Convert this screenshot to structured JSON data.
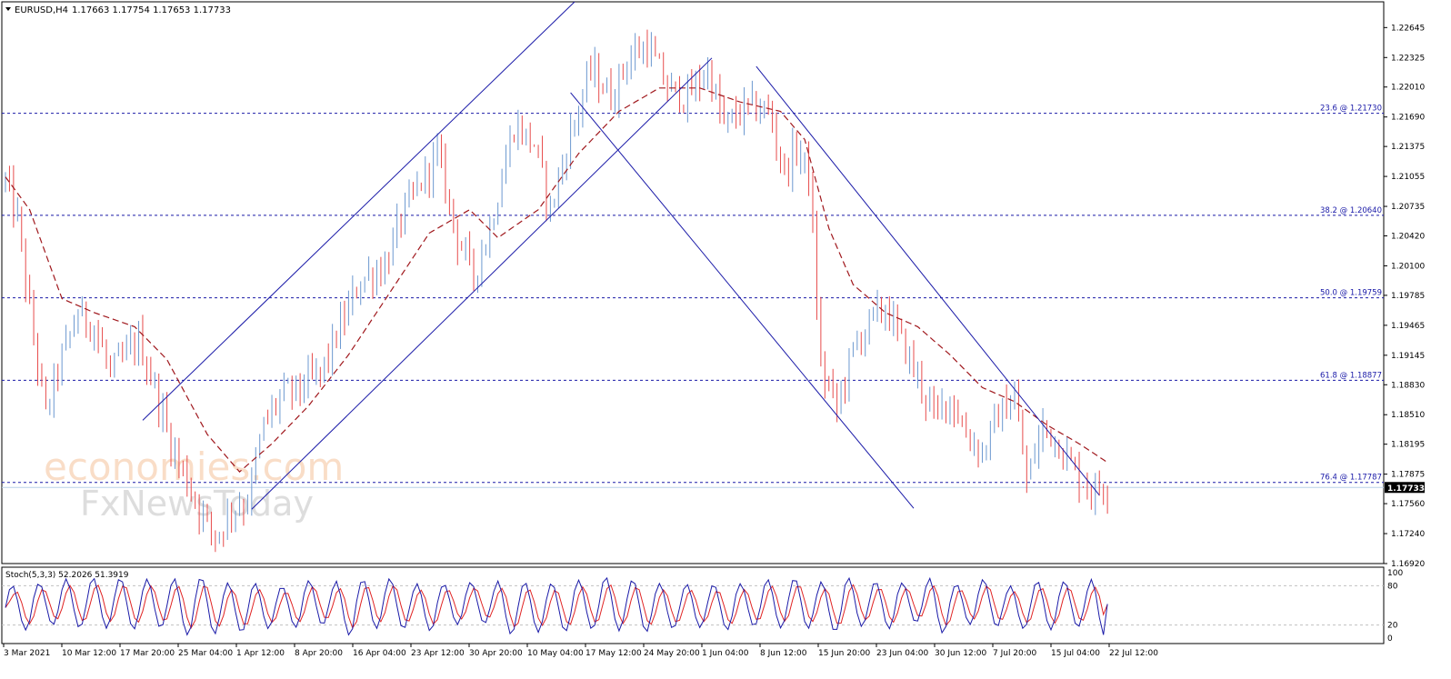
{
  "header": {
    "symbol": "EURUSD,H4",
    "ohlc": "1.17663 1.17754 1.17653 1.17733"
  },
  "indicator": {
    "label": "Stoch(5,3,3) 52.2026 51.3919",
    "levels": [
      "100",
      "80",
      "20",
      "0"
    ]
  },
  "watermark": {
    "line1": "economies.com",
    "line2": "FxNewsToday"
  },
  "colors": {
    "background": "#ffffff",
    "bull_candle": "#6c98d0",
    "bear_candle": "#e74c4c",
    "moving_average": "#a0181d",
    "trendline": "#1a1aa8",
    "fib_line": "#1a1aa8",
    "stoch_main": "#1a1aa8",
    "stoch_signal": "#e02424",
    "current_price_bg": "#000000"
  },
  "chart_data": [
    {
      "type": "candlestick",
      "title": "EURUSD,H4",
      "ylim": [
        1.1692,
        1.2292
      ],
      "y_ticks": [
        "1.22645",
        "1.22325",
        "1.22010",
        "1.21690",
        "1.21375",
        "1.21055",
        "1.20735",
        "1.20420",
        "1.20100",
        "1.19785",
        "1.19465",
        "1.19145",
        "1.18830",
        "1.18510",
        "1.18195",
        "1.17875",
        "1.17560",
        "1.17240",
        "1.16920"
      ],
      "x_ticks": [
        "3 Mar 2021",
        "10 Mar 12:00",
        "17 Mar 20:00",
        "25 Mar 04:00",
        "1 Apr 12:00",
        "8 Apr 20:00",
        "16 Apr 04:00",
        "23 Apr 12:00",
        "30 Apr 20:00",
        "10 May 04:00",
        "17 May 12:00",
        "24 May 20:00",
        "1 Jun 04:00",
        "8 Jun 12:00",
        "15 Jun 20:00",
        "23 Jun 04:00",
        "30 Jun 12:00",
        "7 Jul 20:00",
        "15 Jul 04:00",
        "22 Jul 12:00"
      ],
      "current_price": "1.17733",
      "close_path": [
        {
          "t": 0,
          "p": 1.21
        },
        {
          "t": 3,
          "p": 1.206
        },
        {
          "t": 6,
          "p": 1.196
        },
        {
          "t": 10,
          "p": 1.185
        },
        {
          "t": 13,
          "p": 1.19
        },
        {
          "t": 18,
          "p": 1.196
        },
        {
          "t": 22,
          "p": 1.1945
        },
        {
          "t": 26,
          "p": 1.1895
        },
        {
          "t": 33,
          "p": 1.193
        },
        {
          "t": 37,
          "p": 1.188
        },
        {
          "t": 41,
          "p": 1.182
        },
        {
          "t": 47,
          "p": 1.176
        },
        {
          "t": 52,
          "p": 1.172
        },
        {
          "t": 56,
          "p": 1.175
        },
        {
          "t": 60,
          "p": 1.176
        },
        {
          "t": 64,
          "p": 1.184
        },
        {
          "t": 68,
          "p": 1.187
        },
        {
          "t": 73,
          "p": 1.188
        },
        {
          "t": 78,
          "p": 1.1895
        },
        {
          "t": 83,
          "p": 1.1945
        },
        {
          "t": 88,
          "p": 1.1995
        },
        {
          "t": 94,
          "p": 1.201
        },
        {
          "t": 98,
          "p": 1.206
        },
        {
          "t": 103,
          "p": 1.21
        },
        {
          "t": 107,
          "p": 1.213
        },
        {
          "t": 112,
          "p": 1.204
        },
        {
          "t": 116,
          "p": 1.2
        },
        {
          "t": 120,
          "p": 1.205
        },
        {
          "t": 126,
          "p": 1.216
        },
        {
          "t": 131,
          "p": 1.214
        },
        {
          "t": 135,
          "p": 1.207
        },
        {
          "t": 140,
          "p": 1.215
        },
        {
          "t": 145,
          "p": 1.222
        },
        {
          "t": 150,
          "p": 1.219
        },
        {
          "t": 154,
          "p": 1.223
        },
        {
          "t": 159,
          "p": 1.2245
        },
        {
          "t": 164,
          "p": 1.22
        },
        {
          "t": 169,
          "p": 1.219
        },
        {
          "t": 174,
          "p": 1.222
        },
        {
          "t": 178,
          "p": 1.216
        },
        {
          "t": 184,
          "p": 1.218
        },
        {
          "t": 189,
          "p": 1.2175
        },
        {
          "t": 193,
          "p": 1.211
        },
        {
          "t": 196,
          "p": 1.2135
        },
        {
          "t": 199,
          "p": 1.211
        },
        {
          "t": 202,
          "p": 1.19
        },
        {
          "t": 206,
          "p": 1.186
        },
        {
          "t": 210,
          "p": 1.192
        },
        {
          "t": 214,
          "p": 1.195
        },
        {
          "t": 218,
          "p": 1.1965
        },
        {
          "t": 222,
          "p": 1.193
        },
        {
          "t": 226,
          "p": 1.189
        },
        {
          "t": 230,
          "p": 1.185
        },
        {
          "t": 234,
          "p": 1.187
        },
        {
          "t": 238,
          "p": 1.183
        },
        {
          "t": 242,
          "p": 1.181
        },
        {
          "t": 246,
          "p": 1.185
        },
        {
          "t": 250,
          "p": 1.187
        },
        {
          "t": 253,
          "p": 1.178
        },
        {
          "t": 257,
          "p": 1.184
        },
        {
          "t": 261,
          "p": 1.182
        },
        {
          "t": 265,
          "p": 1.179
        },
        {
          "t": 269,
          "p": 1.177
        },
        {
          "t": 273,
          "p": 1.1775
        }
      ],
      "moving_average": [
        {
          "t": 0,
          "p": 1.2105
        },
        {
          "t": 6,
          "p": 1.207
        },
        {
          "t": 14,
          "p": 1.1975
        },
        {
          "t": 22,
          "p": 1.196
        },
        {
          "t": 32,
          "p": 1.1945
        },
        {
          "t": 40,
          "p": 1.191
        },
        {
          "t": 50,
          "p": 1.183
        },
        {
          "t": 58,
          "p": 1.179
        },
        {
          "t": 66,
          "p": 1.182
        },
        {
          "t": 75,
          "p": 1.186
        },
        {
          "t": 85,
          "p": 1.1915
        },
        {
          "t": 95,
          "p": 1.198
        },
        {
          "t": 105,
          "p": 1.2045
        },
        {
          "t": 115,
          "p": 1.207
        },
        {
          "t": 122,
          "p": 1.204
        },
        {
          "t": 132,
          "p": 1.207
        },
        {
          "t": 142,
          "p": 1.213
        },
        {
          "t": 152,
          "p": 1.2175
        },
        {
          "t": 162,
          "p": 1.22
        },
        {
          "t": 172,
          "p": 1.22
        },
        {
          "t": 182,
          "p": 1.2185
        },
        {
          "t": 192,
          "p": 1.2175
        },
        {
          "t": 198,
          "p": 1.2145
        },
        {
          "t": 204,
          "p": 1.205
        },
        {
          "t": 210,
          "p": 1.199
        },
        {
          "t": 218,
          "p": 1.196
        },
        {
          "t": 226,
          "p": 1.1945
        },
        {
          "t": 234,
          "p": 1.1915
        },
        {
          "t": 242,
          "p": 1.188
        },
        {
          "t": 250,
          "p": 1.1865
        },
        {
          "t": 258,
          "p": 1.184
        },
        {
          "t": 266,
          "p": 1.182
        },
        {
          "t": 273,
          "p": 1.18
        }
      ],
      "fibonacci_levels": [
        {
          "label": "23.6 @ 1.21730",
          "price": 1.2173
        },
        {
          "label": "38.2 @ 1.20640",
          "price": 1.2064
        },
        {
          "label": "50.0 @ 1.19759",
          "price": 1.19759
        },
        {
          "label": "61.8 @ 1.18877",
          "price": 1.18877
        },
        {
          "label": "76.4 @ 1.17787",
          "price": 1.17787
        }
      ],
      "trendlines": [
        {
          "name": "channel-upper",
          "from": {
            "t": 34,
            "p": 1.1845
          },
          "to": {
            "t": 141,
            "p": 1.2292
          }
        },
        {
          "name": "channel-lower",
          "from": {
            "t": 61,
            "p": 1.175
          },
          "to": {
            "t": 175,
            "p": 1.2232
          }
        },
        {
          "name": "descending-line-a",
          "from": {
            "t": 140,
            "p": 1.2195
          },
          "to": {
            "t": 225,
            "p": 1.1751
          }
        },
        {
          "name": "descending-line-b",
          "from": {
            "t": 186,
            "p": 1.2223
          },
          "to": {
            "t": 271,
            "p": 1.1765
          }
        }
      ]
    },
    {
      "type": "line",
      "title": "Stoch(5,3,3) 52.2026 51.3919",
      "ylim": [
        0,
        100
      ],
      "levels": [
        80,
        20
      ],
      "cycles": 41,
      "last_main": 52.2026,
      "last_signal": 51.3919
    }
  ]
}
